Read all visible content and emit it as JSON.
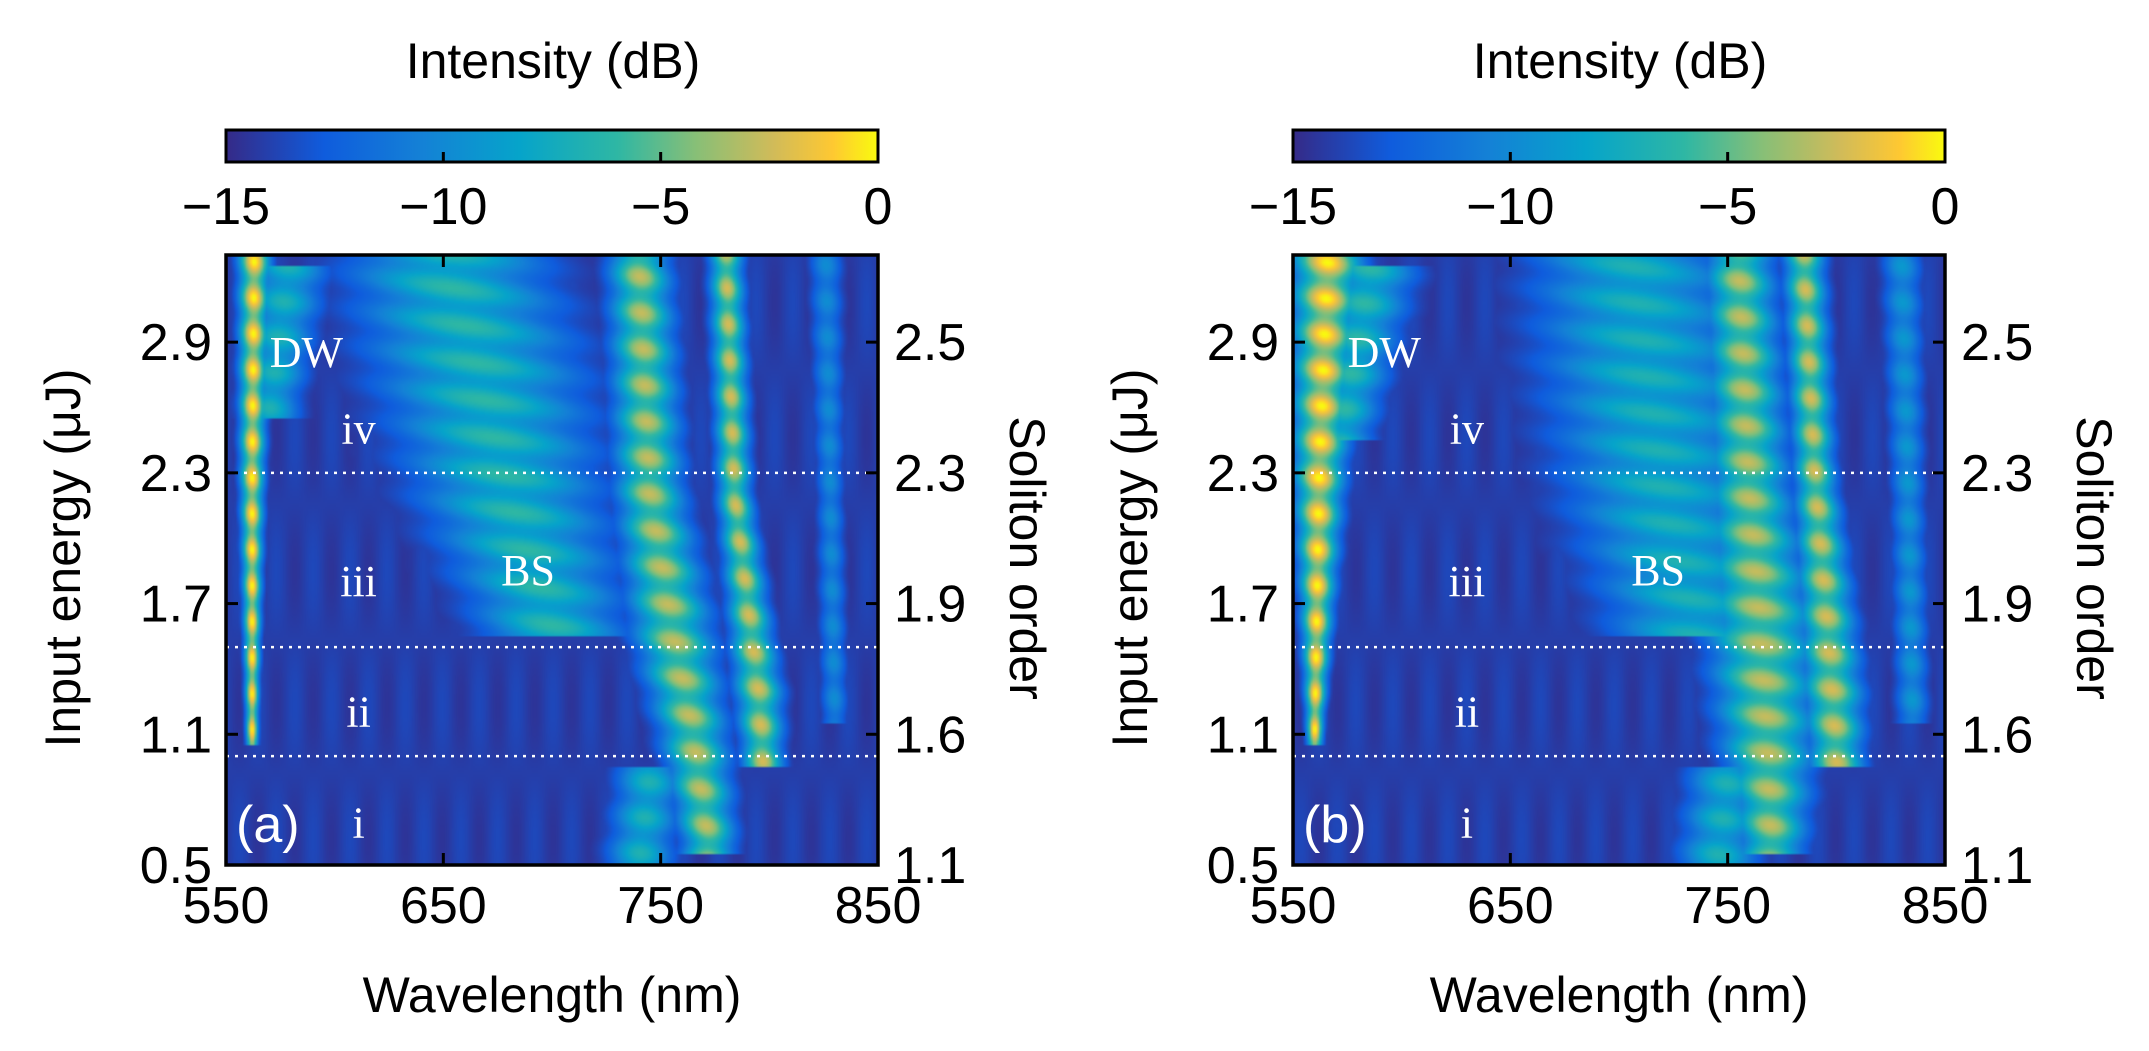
{
  "chart_data": [
    {
      "type": "heatmap",
      "panel_label": "(a)",
      "colorbar": {
        "label": "Intensity (dB)",
        "range": [
          -15,
          0
        ],
        "ticks": [
          "−15",
          "−10",
          "−5",
          "0"
        ],
        "tick_values": [
          -15,
          -10,
          -5,
          0
        ]
      },
      "xlabel": "Wavelength (nm)",
      "xlim": [
        550,
        850
      ],
      "xticks": [
        550,
        650,
        750,
        850
      ],
      "ylabel": "Input energy (μJ)",
      "ylim": [
        0.5,
        3.3
      ],
      "yticks": [
        "0.5",
        "1.1",
        "1.7",
        "2.3",
        "2.9"
      ],
      "ytick_values": [
        0.5,
        1.1,
        1.7,
        2.3,
        2.9
      ],
      "y2label": "Soliton order",
      "y2ticks": [
        "1.1",
        "1.6",
        "1.9",
        "2.3",
        "2.5"
      ],
      "y2tick_values": [
        0.5,
        1.1,
        1.7,
        2.3,
        2.9
      ],
      "region_boundaries": [
        1.0,
        1.5,
        2.3
      ],
      "annotations": [
        {
          "text": "DW",
          "x": 587,
          "y": 2.85
        },
        {
          "text": "iv",
          "x": 611,
          "y": 2.5
        },
        {
          "text": "BS",
          "x": 689,
          "y": 1.85
        },
        {
          "text": "iii",
          "x": 611,
          "y": 1.8
        },
        {
          "text": "ii",
          "x": 611,
          "y": 1.2
        },
        {
          "text": "i",
          "x": 611,
          "y": 0.69
        }
      ],
      "features": [
        {
          "name": "DW",
          "points": [
            [
              562,
              1.1,
              0.6
            ],
            [
              562,
              2.3,
              1.2
            ],
            [
              563,
              3.3,
              1.6
            ]
          ],
          "width": 3,
          "amp": 1.0
        },
        {
          "name": "DW-halo",
          "points": [
            [
              570,
              2.6,
              9
            ],
            [
              578,
              3.2,
              12
            ]
          ],
          "width": 1,
          "amp": 0.55
        },
        {
          "name": "BS",
          "points": [
            [
              700,
              1.6,
              22
            ],
            [
              680,
              2.2,
              28
            ],
            [
              665,
              2.8,
              32
            ],
            [
              650,
              3.3,
              30
            ]
          ],
          "width": 1,
          "amp": 0.6
        },
        {
          "name": "main-soliton",
          "points": [
            [
              772,
              0.6,
              8
            ],
            [
              765,
              1.1,
              10
            ],
            [
              755,
              1.6,
              12
            ],
            [
              745,
              2.2,
              10
            ],
            [
              740,
              3.3,
              9
            ]
          ],
          "width": 1,
          "amp": 0.82
        },
        {
          "name": "red-soliton",
          "points": [
            [
              797,
              1.0,
              6
            ],
            [
              795,
              1.3,
              7
            ],
            [
              790,
              1.7,
              6
            ],
            [
              784,
              2.2,
              5
            ],
            [
              780,
              3.3,
              5
            ]
          ],
          "width": 1,
          "amp": 0.85
        },
        {
          "name": "filament-830",
          "points": [
            [
              830,
              1.2,
              4
            ],
            [
              828,
              2.2,
              4
            ],
            [
              826,
              3.3,
              5
            ]
          ],
          "width": 1,
          "amp": 0.35
        },
        {
          "name": "low-cluster",
          "points": [
            [
              740,
              0.5,
              10
            ],
            [
              745,
              0.9,
              10
            ]
          ],
          "width": 1,
          "amp": 0.55
        }
      ]
    },
    {
      "type": "heatmap",
      "panel_label": "(b)",
      "colorbar": {
        "label": "Intensity (dB)",
        "range": [
          -15,
          0
        ],
        "ticks": [
          "−15",
          "−10",
          "−5",
          "0"
        ],
        "tick_values": [
          -15,
          -10,
          -5,
          0
        ]
      },
      "xlabel": "Wavelength (nm)",
      "xlim": [
        550,
        850
      ],
      "xticks": [
        550,
        650,
        750,
        850
      ],
      "ylabel": "Input energy (μJ)",
      "ylim": [
        0.5,
        3.3
      ],
      "yticks": [
        "0.5",
        "1.1",
        "1.7",
        "2.3",
        "2.9"
      ],
      "ytick_values": [
        0.5,
        1.1,
        1.7,
        2.3,
        2.9
      ],
      "y2label": "Soliton order",
      "y2ticks": [
        "1.1",
        "1.6",
        "1.9",
        "2.3",
        "2.5"
      ],
      "y2tick_values": [
        0.5,
        1.1,
        1.7,
        2.3,
        2.9
      ],
      "region_boundaries": [
        1.0,
        1.5,
        2.3
      ],
      "annotations": [
        {
          "text": "DW",
          "x": 592,
          "y": 2.85
        },
        {
          "text": "iv",
          "x": 630,
          "y": 2.5
        },
        {
          "text": "BS",
          "x": 718,
          "y": 1.85
        },
        {
          "text": "iii",
          "x": 630,
          "y": 1.8
        },
        {
          "text": "ii",
          "x": 630,
          "y": 1.2
        },
        {
          "text": "i",
          "x": 630,
          "y": 0.69
        }
      ],
      "features": [
        {
          "name": "DW",
          "points": [
            [
              560,
              1.1,
              0.8
            ],
            [
              562,
              2.3,
              2.5
            ],
            [
              566,
              3.3,
              3.5
            ]
          ],
          "width": 3,
          "amp": 1.0
        },
        {
          "name": "DW-halo",
          "points": [
            [
              572,
              2.5,
              10
            ],
            [
              585,
              3.2,
              14
            ]
          ],
          "width": 1,
          "amp": 0.6
        },
        {
          "name": "BS",
          "points": [
            [
              735,
              1.6,
              26
            ],
            [
              720,
              2.2,
              30
            ],
            [
              712,
              2.8,
              32
            ],
            [
              705,
              3.3,
              30
            ]
          ],
          "width": 1,
          "amp": 0.55
        },
        {
          "name": "main-soliton",
          "points": [
            [
              770,
              0.6,
              10
            ],
            [
              768,
              1.1,
              14
            ],
            [
              765,
              1.6,
              16
            ],
            [
              760,
              2.2,
              12
            ],
            [
              755,
              3.3,
              10
            ]
          ],
          "width": 1,
          "amp": 0.82
        },
        {
          "name": "red-soliton",
          "points": [
            [
              800,
              1.0,
              8
            ],
            [
              798,
              1.3,
              9
            ],
            [
              795,
              1.7,
              8
            ],
            [
              790,
              2.3,
              6
            ],
            [
              785,
              3.3,
              6
            ]
          ],
          "width": 1,
          "amp": 0.85
        },
        {
          "name": "filament-830",
          "points": [
            [
              835,
              1.2,
              5
            ],
            [
              833,
              2.2,
              5
            ],
            [
              830,
              3.3,
              6
            ]
          ],
          "width": 1,
          "amp": 0.4
        },
        {
          "name": "low-cluster",
          "points": [
            [
              745,
              0.5,
              12
            ],
            [
              750,
              0.9,
              12
            ]
          ],
          "width": 1,
          "amp": 0.55
        }
      ]
    }
  ]
}
